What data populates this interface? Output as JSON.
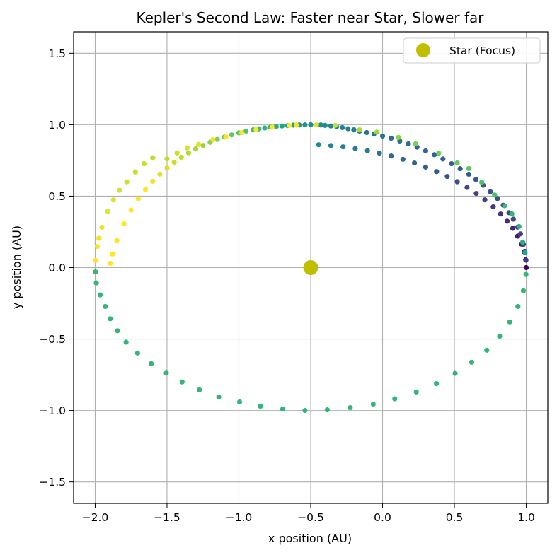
{
  "chart_data": {
    "type": "scatter",
    "title": "Kepler's Second Law: Faster near Star, Slower far",
    "xlabel": "x position (AU)",
    "ylabel": "y position (AU)",
    "xlim": [
      -2.15,
      1.15
    ],
    "ylim": [
      -1.65,
      1.65
    ],
    "xticks": [
      -2.0,
      -1.5,
      -1.0,
      -0.5,
      0.0,
      0.5,
      1.0
    ],
    "yticks": [
      -1.5,
      -1.0,
      -0.5,
      0.0,
      0.5,
      1.0,
      1.5
    ],
    "xtick_labels": [
      "−2.0",
      "−1.5",
      "−1.0",
      "−0.5",
      "0.0",
      "0.5",
      "1.0"
    ],
    "ytick_labels": [
      "−1.5",
      "−1.0",
      "−0.5",
      "0.0",
      "0.5",
      "1.0",
      "1.5"
    ],
    "grid": true,
    "legend_position": "top-right",
    "orbit": {
      "colormap": "viridis",
      "marker_color_default": "#21918c",
      "center": [
        -0.5,
        0.0
      ],
      "semi_major_axis": 1.5,
      "semi_minor_axis": 1.0,
      "points": [
        [
          1.0,
          0.0,
          0.0
        ],
        [
          0.996,
          0.055,
          0.02
        ],
        [
          0.985,
          0.11,
          0.04
        ],
        [
          0.966,
          0.165,
          0.06
        ],
        [
          0.94,
          0.22,
          0.08
        ],
        [
          0.906,
          0.275,
          0.1
        ],
        [
          0.867,
          0.325,
          0.12
        ],
        [
          0.822,
          0.375,
          0.14
        ],
        [
          0.77,
          0.425,
          0.16
        ],
        [
          0.712,
          0.474,
          0.18
        ],
        [
          0.652,
          0.519,
          0.2
        ],
        [
          0.588,
          0.561,
          0.22
        ],
        [
          0.52,
          0.601,
          0.24
        ],
        [
          0.45,
          0.638,
          0.26
        ],
        [
          0.376,
          0.672,
          0.28
        ],
        [
          0.3,
          0.703,
          0.3
        ],
        [
          0.222,
          0.732,
          0.32
        ],
        [
          0.142,
          0.758,
          0.34
        ],
        [
          0.06,
          0.781,
          0.36
        ],
        [
          -0.022,
          0.801,
          0.38
        ],
        [
          -0.105,
          0.818,
          0.4
        ],
        [
          -0.19,
          0.833,
          0.42
        ],
        [
          -0.275,
          0.845,
          0.44
        ],
        [
          -0.36,
          0.854,
          0.46
        ],
        [
          -0.445,
          0.86,
          0.48
        ],
        [
          -0.43,
          0.998,
          0.48
        ],
        [
          -0.4,
          0.995,
          0.47
        ],
        [
          -0.36,
          0.991,
          0.46
        ],
        [
          -0.32,
          0.986,
          0.45
        ],
        [
          -0.28,
          0.98,
          0.44
        ],
        [
          -0.24,
          0.972,
          0.43
        ],
        [
          -0.2,
          0.964,
          0.42
        ],
        [
          -0.16,
          0.955,
          0.41
        ],
        [
          -0.11,
          0.945,
          0.4
        ],
        [
          -0.06,
          0.935,
          0.39
        ],
        [
          0.0,
          0.921,
          0.38
        ],
        [
          0.06,
          0.905,
          0.37
        ],
        [
          0.12,
          0.886,
          0.36
        ],
        [
          0.18,
          0.866,
          0.35
        ],
        [
          0.24,
          0.843,
          0.34
        ],
        [
          0.3,
          0.817,
          0.33
        ],
        [
          0.36,
          0.79,
          0.32
        ],
        [
          0.42,
          0.76,
          0.31
        ],
        [
          0.48,
          0.727,
          0.3
        ],
        [
          0.54,
          0.692,
          0.29
        ],
        [
          0.6,
          0.653,
          0.28
        ],
        [
          0.65,
          0.616,
          0.27
        ],
        [
          0.7,
          0.576,
          0.26
        ],
        [
          0.75,
          0.531,
          0.25
        ],
        [
          0.8,
          0.483,
          0.24
        ],
        [
          0.84,
          0.437,
          0.23
        ],
        [
          0.88,
          0.384,
          0.22
        ],
        [
          0.91,
          0.339,
          0.21
        ],
        [
          0.94,
          0.283,
          0.2
        ],
        [
          0.96,
          0.236,
          0.19
        ],
        [
          0.98,
          0.163,
          0.18
        ],
        [
          0.99,
          0.114,
          0.17
        ],
        [
          0.998,
          0.052,
          0.16
        ],
        [
          -0.5,
          1.0,
          0.5
        ],
        [
          -0.54,
          0.999,
          0.52
        ],
        [
          -0.58,
          0.998,
          0.54
        ],
        [
          -0.62,
          0.997,
          0.56
        ],
        [
          -0.66,
          0.994,
          0.58
        ],
        [
          -0.7,
          0.991,
          0.6
        ],
        [
          -0.74,
          0.987,
          0.62
        ],
        [
          -0.78,
          0.983,
          0.64
        ],
        [
          -0.82,
          0.977,
          0.66
        ],
        [
          -0.86,
          0.971,
          0.68
        ],
        [
          -0.9,
          0.964,
          0.7
        ],
        [
          -0.95,
          0.955,
          0.72
        ],
        [
          -1.0,
          0.943,
          0.74
        ],
        [
          -1.05,
          0.929,
          0.76
        ],
        [
          -1.1,
          0.914,
          0.78
        ],
        [
          -1.15,
          0.897,
          0.8
        ],
        [
          -1.2,
          0.877,
          0.82
        ],
        [
          -1.25,
          0.855,
          0.84
        ],
        [
          -1.3,
          0.831,
          0.86
        ],
        [
          -1.35,
          0.803,
          0.88
        ],
        [
          -1.4,
          0.772,
          0.9
        ],
        [
          -1.45,
          0.737,
          0.92
        ],
        [
          -1.5,
          0.698,
          0.94
        ],
        [
          -1.55,
          0.654,
          0.96
        ],
        [
          -1.6,
          0.604,
          0.98
        ],
        [
          -1.65,
          0.547,
          1.0
        ],
        [
          -1.7,
          0.481,
          1.0
        ],
        [
          -1.75,
          0.403,
          1.0
        ],
        [
          -1.8,
          0.306,
          1.0
        ],
        [
          -1.85,
          0.19,
          1.0
        ],
        [
          -1.88,
          0.095,
          1.0
        ],
        [
          -1.895,
          0.03,
          1.0
        ],
        [
          -1.5,
          0.76,
          0.9
        ],
        [
          -1.43,
          0.802,
          0.92
        ],
        [
          -1.36,
          0.838,
          0.94
        ],
        [
          -1.28,
          0.862,
          0.96
        ],
        [
          -1.18,
          0.895,
          0.98
        ],
        [
          -1.09,
          0.915,
          0.99
        ],
        [
          -0.98,
          0.945,
          1.0
        ],
        [
          -0.88,
          0.966,
          1.0
        ],
        [
          -0.77,
          0.983,
          1.0
        ],
        [
          -0.65,
          0.995,
          1.0
        ],
        [
          -0.6,
          0.998,
          0.98
        ],
        [
          -0.46,
          0.999,
          0.95
        ],
        [
          -0.33,
          0.995,
          0.92
        ],
        [
          -0.16,
          0.964,
          0.88
        ],
        [
          -0.04,
          0.948,
          0.85
        ],
        [
          0.11,
          0.911,
          0.82
        ],
        [
          0.23,
          0.866,
          0.8
        ],
        [
          0.39,
          0.801,
          0.78
        ],
        [
          0.52,
          0.732,
          0.76
        ],
        [
          0.6,
          0.693,
          0.74
        ],
        [
          0.69,
          0.597,
          0.72
        ],
        [
          0.78,
          0.508,
          0.7
        ],
        [
          0.85,
          0.433,
          0.68
        ],
        [
          0.9,
          0.376,
          0.66
        ],
        [
          0.95,
          0.287,
          0.64
        ],
        [
          0.975,
          0.177,
          0.62
        ],
        [
          0.992,
          0.105,
          0.6
        ],
        [
          -1.975,
          0.205,
          0.98
        ],
        [
          -1.953,
          0.282,
          0.97
        ],
        [
          -1.913,
          0.394,
          0.96
        ],
        [
          -1.873,
          0.474,
          0.95
        ],
        [
          -1.83,
          0.541,
          0.94
        ],
        [
          -1.78,
          0.6,
          0.93
        ],
        [
          -1.72,
          0.669,
          0.92
        ],
        [
          -1.66,
          0.727,
          0.91
        ],
        [
          -1.6,
          0.768,
          0.9
        ],
        [
          -1.985,
          0.148,
          0.99
        ],
        [
          -1.997,
          0.05,
          1.0
        ],
        [
          -1.998,
          -0.03,
          0.66
        ],
        [
          -1.992,
          -0.107,
          0.66
        ],
        [
          -1.965,
          -0.191,
          0.66
        ],
        [
          -1.93,
          -0.272,
          0.66
        ],
        [
          -1.895,
          -0.358,
          0.66
        ],
        [
          -1.845,
          -0.442,
          0.66
        ],
        [
          -1.785,
          -0.522,
          0.66
        ],
        [
          -1.705,
          -0.598,
          0.66
        ],
        [
          -1.61,
          -0.672,
          0.66
        ],
        [
          -1.505,
          -0.738,
          0.66
        ],
        [
          -1.395,
          -0.8,
          0.66
        ],
        [
          -1.275,
          -0.855,
          0.66
        ],
        [
          -1.14,
          -0.905,
          0.66
        ],
        [
          -0.995,
          -0.94,
          0.66
        ],
        [
          -0.85,
          -0.97,
          0.66
        ],
        [
          -0.695,
          -0.99,
          0.66
        ],
        [
          -0.54,
          -1.0,
          0.66
        ],
        [
          -0.385,
          -0.995,
          0.66
        ],
        [
          -0.225,
          -0.98,
          0.66
        ],
        [
          -0.065,
          -0.955,
          0.66
        ],
        [
          0.085,
          -0.918,
          0.66
        ],
        [
          0.235,
          -0.87,
          0.66
        ],
        [
          0.375,
          -0.812,
          0.66
        ],
        [
          0.505,
          -0.74,
          0.66
        ],
        [
          0.62,
          -0.662,
          0.66
        ],
        [
          0.725,
          -0.578,
          0.66
        ],
        [
          0.815,
          -0.48,
          0.66
        ],
        [
          0.885,
          -0.38,
          0.66
        ],
        [
          0.942,
          -0.272,
          0.66
        ],
        [
          0.98,
          -0.162,
          0.66
        ],
        [
          0.998,
          -0.048,
          0.66
        ]
      ]
    },
    "star": {
      "label": "Star (Focus)",
      "x": -0.5,
      "y": 0.0,
      "color": "#bfbf00"
    }
  }
}
